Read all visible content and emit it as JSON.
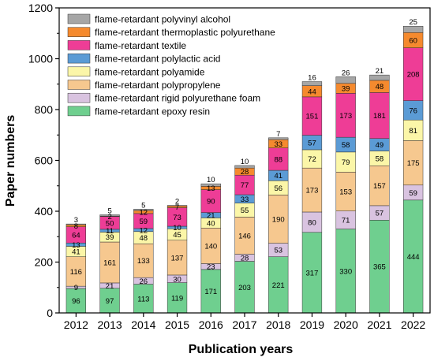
{
  "chart_data": {
    "type": "bar",
    "stacked": true,
    "xlabel": "Publication years",
    "ylabel": "Paper numbers",
    "ylim": [
      0,
      1200
    ],
    "yticks": [
      0,
      200,
      400,
      600,
      800,
      1000,
      1200
    ],
    "categories": [
      "2012",
      "2013",
      "2014",
      "2015",
      "2016",
      "2017",
      "2018",
      "2019",
      "2020",
      "2021",
      "2022"
    ],
    "legend_position": "top-left",
    "series": [
      {
        "name": "flame-retardant epoxy resin",
        "color": "#6fcf8f",
        "values": [
          96,
          97,
          113,
          119,
          171,
          203,
          221,
          317,
          330,
          365,
          444
        ]
      },
      {
        "name": "flame-retardant rigid polyurethane foam",
        "color": "#d9c3e0",
        "values": [
          9,
          21,
          26,
          30,
          23,
          28,
          53,
          80,
          71,
          57,
          59
        ]
      },
      {
        "name": "flame-retardant polypropylene",
        "color": "#f6c88f",
        "values": [
          116,
          161,
          133,
          137,
          140,
          146,
          190,
          173,
          153,
          157,
          175
        ]
      },
      {
        "name": "flame-retardant polyamide",
        "color": "#fbf6a8",
        "values": [
          41,
          39,
          48,
          45,
          40,
          55,
          56,
          72,
          79,
          58,
          81
        ]
      },
      {
        "name": "flame-retardant polylactic acid",
        "color": "#5b9bd5",
        "values": [
          13,
          11,
          12,
          10,
          21,
          33,
          41,
          57,
          58,
          49,
          76
        ]
      },
      {
        "name": "flame-retardant textile",
        "color": "#ee3d96",
        "values": [
          64,
          50,
          59,
          73,
          90,
          77,
          88,
          151,
          173,
          181,
          208
        ]
      },
      {
        "name": "flame-retardant thermoplastic polyurethane",
        "color": "#f58a2e",
        "values": [
          8,
          2,
          12,
          7,
          13,
          28,
          33,
          44,
          39,
          48,
          60
        ]
      },
      {
        "name": "flame-retardant polyvinyl alcohol",
        "color": "#a6a6a6",
        "values": [
          3,
          5,
          5,
          2,
          10,
          10,
          7,
          16,
          26,
          21,
          25
        ]
      }
    ]
  }
}
